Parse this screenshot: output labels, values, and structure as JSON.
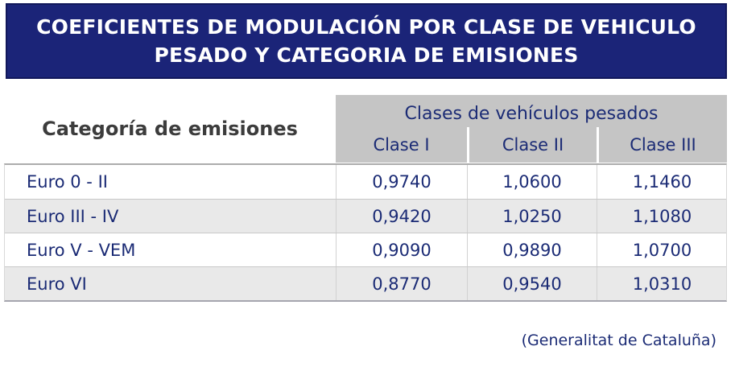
{
  "title": {
    "line1": "COEFICIENTES DE MODULACIÓN POR CLASE DE VEHICULO",
    "line2": "PESADO Y CATEGORIA DE EMISIONES"
  },
  "table": {
    "row_header": "Categoría de emisiones",
    "column_group_header": "Clases de vehículos pesados",
    "columns": [
      "Clase I",
      "Clase II",
      "Clase III"
    ],
    "rows": [
      {
        "label": "Euro 0 - II",
        "values": [
          "0,9740",
          "1,0600",
          "1,1460"
        ]
      },
      {
        "label": "Euro III - IV",
        "values": [
          "0,9420",
          "1,0250",
          "1,1080"
        ]
      },
      {
        "label": "Euro V - VEM",
        "values": [
          "0,9090",
          "0,9890",
          "1,0700"
        ]
      },
      {
        "label": "Euro VI",
        "values": [
          "0,8770",
          "0,9540",
          "1,0310"
        ]
      }
    ]
  },
  "source": "(Generalitat de Cataluña)",
  "colors": {
    "banner_bg": "#1B2478",
    "banner_border": "#11175A",
    "banner_text": "#FFFFFF",
    "header_gray": "#C5C5C5",
    "alt_row_gray": "#E9E9E9",
    "navy_text": "#1B2B75",
    "row_header_text": "#3C3C3C"
  },
  "chart_data": {
    "type": "table",
    "title": "COEFICIENTES DE MODULACIÓN POR CLASE DE VEHICULO PESADO Y CATEGORIA DE EMISIONES",
    "row_dimension": "Categoría de emisiones",
    "column_dimension": "Clases de vehículos pesados",
    "columns": [
      "Clase I",
      "Clase II",
      "Clase III"
    ],
    "rows": [
      "Euro 0 - II",
      "Euro III - IV",
      "Euro V - VEM",
      "Euro VI"
    ],
    "values": [
      [
        0.974,
        1.06,
        1.146
      ],
      [
        0.942,
        1.025,
        1.108
      ],
      [
        0.909,
        0.989,
        1.07
      ],
      [
        0.877,
        0.954,
        1.031
      ]
    ],
    "decimal_separator": ",",
    "source": "(Generalitat de Cataluña)"
  }
}
